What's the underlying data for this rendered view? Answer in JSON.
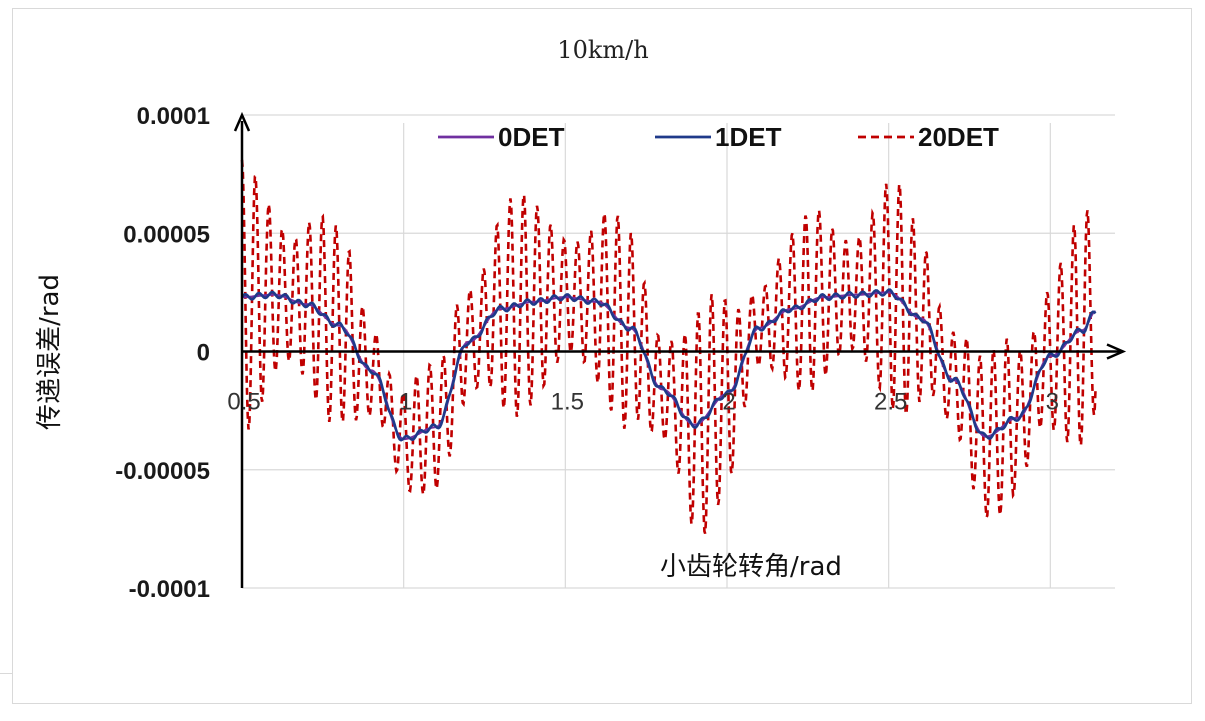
{
  "chart_data": {
    "type": "line",
    "title": "10km/h",
    "xlabel": "小齿轮转角/rad",
    "ylabel": "传递误差/rad",
    "xlim": [
      0.5,
      3.2
    ],
    "ylim": [
      -0.0001,
      0.0001
    ],
    "x_ticks": [
      {
        "value": 0.5,
        "label": "0.5"
      },
      {
        "value": 1.0,
        "label": "1"
      },
      {
        "value": 1.5,
        "label": "1.5"
      },
      {
        "value": 2.0,
        "label": "2"
      },
      {
        "value": 2.5,
        "label": "2.5"
      },
      {
        "value": 3.0,
        "label": "3"
      }
    ],
    "y_ticks": [
      {
        "value": 0.0001,
        "label": "0.0001"
      },
      {
        "value": 5e-05,
        "label": "0.00005"
      },
      {
        "value": 0,
        "label": "0"
      },
      {
        "value": -5e-05,
        "label": "-0.00005"
      },
      {
        "value": -0.0001,
        "label": "-0.0001"
      }
    ],
    "grid": true,
    "legend_position": "top",
    "series": [
      {
        "name": "0DET",
        "color": "#7030a0",
        "style": "solid",
        "x": [
          0.5,
          0.6,
          0.7,
          0.8,
          0.9,
          1.0,
          1.1,
          1.2,
          1.3,
          1.4,
          1.5,
          1.6,
          1.7,
          1.8,
          1.9,
          2.0,
          2.1,
          2.2,
          2.3,
          2.4,
          2.5,
          2.6,
          2.7,
          2.8,
          2.9,
          3.0,
          3.1,
          3.14
        ],
        "y": [
          2.3e-05,
          2.4e-05,
          2e-05,
          1.1e-05,
          -8e-06,
          -3.7e-05,
          -3.2e-05,
          4e-06,
          1.8e-05,
          2.1e-05,
          2.3e-05,
          2.1e-05,
          1e-05,
          -1.6e-05,
          -3.1e-05,
          -1.8e-05,
          1e-05,
          1.8e-05,
          2.3e-05,
          2.4e-05,
          2.5e-05,
          1.4e-05,
          -1.2e-05,
          -3.6e-05,
          -2.8e-05,
          -2e-06,
          9e-06,
          1.7e-05
        ]
      },
      {
        "name": "1DET",
        "color": "#1f3a8a",
        "style": "solid",
        "x": [
          0.5,
          0.6,
          0.7,
          0.8,
          0.9,
          1.0,
          1.1,
          1.2,
          1.3,
          1.4,
          1.5,
          1.6,
          1.7,
          1.8,
          1.9,
          2.0,
          2.1,
          2.2,
          2.3,
          2.4,
          2.5,
          2.6,
          2.7,
          2.8,
          2.9,
          3.0,
          3.1,
          3.14
        ],
        "y": [
          2.3e-05,
          2.4e-05,
          2e-05,
          1.1e-05,
          -8e-06,
          -3.7e-05,
          -3.2e-05,
          4e-06,
          1.8e-05,
          2.1e-05,
          2.3e-05,
          2.1e-05,
          1e-05,
          -1.6e-05,
          -3.1e-05,
          -1.8e-05,
          1e-05,
          1.8e-05,
          2.3e-05,
          2.4e-05,
          2.5e-05,
          1.4e-05,
          -1.2e-05,
          -3.6e-05,
          -2.8e-05,
          -2e-06,
          9e-06,
          1.7e-05
        ]
      },
      {
        "name": "20DET",
        "color": "#c00000",
        "style": "dashed",
        "x": [
          0.5,
          0.6,
          0.7,
          0.8,
          0.9,
          1.0,
          1.1,
          1.2,
          1.3,
          1.4,
          1.5,
          1.6,
          1.7,
          1.8,
          1.9,
          2.0,
          2.1,
          2.2,
          2.3,
          2.4,
          2.5,
          2.6,
          2.7,
          2.8,
          2.9,
          3.0,
          3.1,
          3.14
        ],
        "y": [
          2.3e-05,
          2.4e-05,
          2e-05,
          1.1e-05,
          -8e-06,
          -3.7e-05,
          -3.2e-05,
          4e-06,
          1.8e-05,
          2.1e-05,
          2.3e-05,
          2.1e-05,
          1e-05,
          -1.6e-05,
          -3.1e-05,
          -1.8e-05,
          1e-05,
          1.8e-05,
          2.3e-05,
          2.4e-05,
          2.5e-05,
          1.4e-05,
          -1.2e-05,
          -3.6e-05,
          -2.8e-05,
          -2e-06,
          9e-06,
          1.7e-05
        ],
        "oscillation": {
          "period_rad": 0.0415,
          "envelope": {
            "x": [
              0.5,
              0.6,
              0.7,
              0.8,
              0.9,
              1.0,
              1.1,
              1.2,
              1.3,
              1.4,
              1.5,
              1.6,
              1.7,
              1.8,
              1.9,
              2.0,
              2.1,
              2.2,
              2.3,
              2.4,
              2.5,
              2.6,
              2.7,
              2.8,
              2.9,
              3.0,
              3.1,
              3.14
            ],
            "amplitude": [
              5.8e-05,
              5.5e-05,
              5e-05,
              4.2e-05,
              3.3e-05,
              2.8e-05,
              2.7e-05,
              4.2e-05,
              5.2e-05,
              4.5e-05,
              4.7e-05,
              4.2e-05,
              4.5e-05,
              4.2e-05,
              5.2e-05,
              4.5e-05,
              3.2e-05,
              3.5e-05,
              4.2e-05,
              4.6e-05,
              5e-05,
              4.5e-05,
              3.8e-05,
              3.5e-05,
              4.2e-05,
              5.2e-05,
              5e-05,
              4.5e-05
            ]
          }
        }
      }
    ]
  }
}
